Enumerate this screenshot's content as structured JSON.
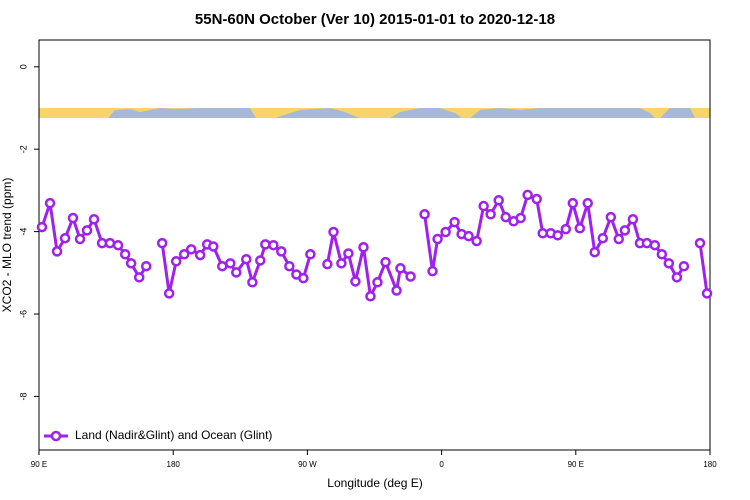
{
  "chart_data": {
    "type": "line",
    "title": "55N-60N October (Ver 10)   2015-01-01 to 2020-12-18",
    "x_label": "Longitude (deg E)",
    "y_label": "XCO2 - MLO trend (ppm)",
    "x": [
      92.0,
      97.4,
      102.1,
      107.5,
      112.8,
      117.5,
      122.2,
      126.9,
      132.3,
      137.6,
      143.0,
      147.8,
      151.8,
      157.2,
      161.9,
      167.0,
      172.6,
      177.3,
      182.0,
      187.4,
      192.1,
      198.1,
      202.8,
      206.9,
      212.9,
      218.3,
      222.3,
      229.0,
      233.1,
      238.4,
      241.8,
      247.2,
      252.5,
      257.9,
      262.6,
      267.3,
      272.0,
      277.7,
      283.4,
      287.5,
      292.8,
      297.5,
      302.2,
      307.6,
      312.3,
      317.0,
      322.4,
      329.8,
      332.4,
      339.2,
      343.9,
      348.6,
      353.9,
      357.3,
      362.7,
      368.7,
      373.4,
      378.1,
      383.5,
      388.2,
      392.9,
      398.3,
      403.0,
      408.3,
      413.0,
      417.7,
      423.8,
      427.8,
      433.2,
      437.9,
      443.3,
      448.0,
      452.7,
      458.0,
      462.7,
      468.1,
      473.5,
      478.8,
      482.9,
      488.3,
      493.0,
      497.7,
      503.0,
      507.7,
      512.4,
      517.8,
      522.5,
      527.9,
      533.3,
      538.0
    ],
    "series": [
      {
        "name": "Land (Nadir&Glint) and Ocean (Glint)",
        "color": "#a020f0",
        "values": [
          -3.89,
          -3.31,
          -4.48,
          -4.16,
          -3.67,
          -4.18,
          -3.97,
          -3.7,
          -4.28,
          -4.28,
          -4.33,
          -4.55,
          -4.77,
          -5.11,
          -4.84,
          null,
          -4.28,
          -5.5,
          -4.72,
          -4.55,
          -4.43,
          -4.57,
          -4.31,
          -4.36,
          -4.84,
          -4.77,
          -4.99,
          -4.67,
          -5.23,
          -4.7,
          -4.31,
          -4.33,
          -4.48,
          -4.84,
          -5.04,
          -5.13,
          -4.55,
          null,
          -4.79,
          -4.01,
          -4.77,
          -4.53,
          -5.21,
          -4.38,
          -5.57,
          -5.23,
          -4.74,
          -5.43,
          -4.89,
          -5.09,
          null,
          -3.58,
          -4.96,
          -4.18,
          -4.01,
          -3.77,
          -4.06,
          -4.11,
          -4.23,
          -3.38,
          -3.58,
          -3.24,
          -3.65,
          -3.75,
          -3.67,
          -3.11,
          -3.21,
          -4.04,
          -4.04,
          -4.09,
          -3.94,
          -3.31,
          -3.92,
          -3.31,
          -4.5,
          -4.16,
          -3.65,
          -4.18,
          -3.97,
          -3.7,
          -4.28,
          -4.28,
          -4.33,
          -4.55,
          -4.77,
          -5.11,
          -4.84,
          null,
          -4.28,
          -5.5
        ]
      }
    ],
    "xlim": [
      90,
      540
    ],
    "xticks": [
      {
        "value": 90,
        "label": "90 E"
      },
      180,
      {
        "value": 270,
        "label": "90 W"
      },
      {
        "value": 360,
        "label": "0"
      },
      {
        "value": 450,
        "label": "90 E"
      },
      {
        "value": 540,
        "label": "180"
      }
    ],
    "ylim": [
      -9.3,
      0.65
    ],
    "yticks": [
      0,
      -2,
      -4,
      -6,
      -8
    ],
    "legend": "bottom-left"
  }
}
